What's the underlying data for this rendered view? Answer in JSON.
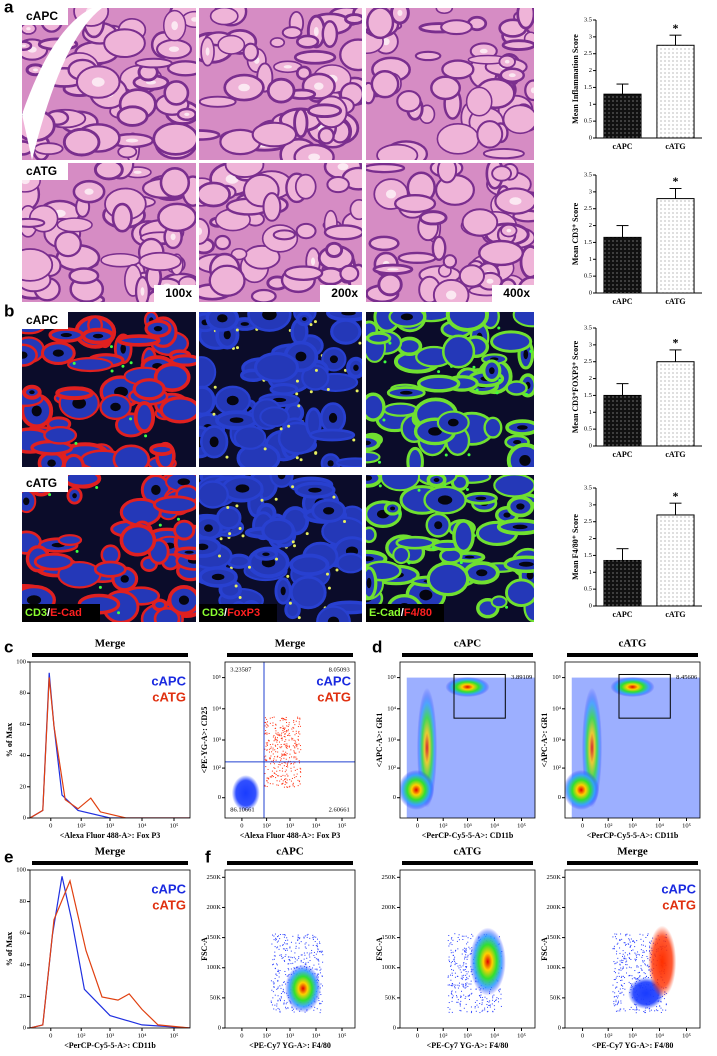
{
  "figure": {
    "letters": [
      "a",
      "b",
      "c",
      "d",
      "e",
      "f"
    ],
    "a": {
      "rows": [
        "cAPC",
        "cATG"
      ],
      "magnifications": [
        "100x",
        "200x",
        "400x"
      ]
    },
    "b": {
      "rows": [
        "cAPC",
        "cATG"
      ],
      "stains": [
        [
          "CD3",
          "/",
          "E-Cad"
        ],
        [
          "CD3",
          "/",
          "FoxP3"
        ],
        [
          "E-Cad",
          "/",
          "F4/80"
        ]
      ]
    },
    "flow": [
      {
        "header": "Merge",
        "kind": "hist",
        "xlabel": "<Alexa Fluor 488-A>: Fox P3",
        "ylabel": "% of Max",
        "legend": [
          "cAPC",
          "cATG"
        ]
      },
      {
        "header": "Merge",
        "kind": "dots",
        "xlabel": "<Alexa Fluor 488-A>: Fox P3",
        "ylabel": "<PE-YG-A>: CD25",
        "legend": [
          "cAPC",
          "cATG"
        ],
        "gates": [
          "3.23587",
          "8.05093",
          "86.10661",
          "2.60661"
        ]
      },
      {
        "header": "cAPC",
        "kind": "dots",
        "xlabel": "<PerCP-Cy5-5-A>: CD11b",
        "ylabel": "<APC-A>: GR1",
        "gates": [
          "3.89109"
        ]
      },
      {
        "header": "cATG",
        "kind": "dots",
        "xlabel": "<PerCP-Cy5-5-A>: CD11b",
        "ylabel": "<APC-A>: GR1",
        "gates": [
          "8.45606"
        ]
      },
      {
        "header": "Merge",
        "kind": "hist",
        "xlabel": "<PerCP-Cy5-5-A>: CD11b",
        "ylabel": "% of Max",
        "legend": [
          "cAPC",
          "cATG"
        ]
      },
      {
        "header": "cAPC",
        "kind": "fsc",
        "xlabel": "<PE-Cy7 YG-A>: F4/80",
        "ylabel": "FSC-A"
      },
      {
        "header": "cATG",
        "kind": "fsc",
        "xlabel": "<PE-Cy7 YG-A>: F4/80",
        "ylabel": "FSC-A"
      },
      {
        "header": "Merge",
        "kind": "fsc",
        "xlabel": "<PE-Cy7 YG-A>: F4/80",
        "ylabel": "FSC-A",
        "legend": [
          "cAPC",
          "cATG"
        ]
      }
    ],
    "log_ticks": [
      {
        "value": 0,
        "label": "0"
      },
      {
        "value": 100,
        "label": "10²"
      },
      {
        "value": 1000,
        "label": "10³"
      },
      {
        "value": 10000,
        "label": "10⁴"
      },
      {
        "value": 100000,
        "label": "10⁵"
      }
    ],
    "pct_ticks": [
      0,
      20,
      40,
      60,
      80,
      100
    ],
    "fsc_ticks": [
      0,
      {
        "value": 50000,
        "label": "50K"
      },
      {
        "value": 100000,
        "label": "100K"
      },
      {
        "value": 150000,
        "label": "150K"
      },
      {
        "value": 200000,
        "label": "200K"
      },
      {
        "value": 250000,
        "label": "250K"
      }
    ]
  },
  "chart_data": [
    {
      "type": "bar",
      "ylabel": "Mean Inflammation Score",
      "categories": [
        "cAPC",
        "cATG"
      ],
      "values": [
        1.3,
        2.75
      ],
      "errors": [
        0.3,
        0.3
      ],
      "colors": [
        "#111111",
        "#ffffff"
      ],
      "ylim": [
        0,
        3.5
      ],
      "yticks": [
        0,
        0.5,
        1,
        1.5,
        2,
        2.5,
        3,
        3.5
      ],
      "annotation": "*"
    },
    {
      "type": "bar",
      "ylabel": "Mean CD3⁺ Score",
      "categories": [
        "cAPC",
        "cATG"
      ],
      "values": [
        1.65,
        2.8
      ],
      "errors": [
        0.35,
        0.3
      ],
      "colors": [
        "#111111",
        "#ffffff"
      ],
      "ylim": [
        0,
        3.5
      ],
      "yticks": [
        0,
        0.5,
        1,
        1.5,
        2,
        2.5,
        3,
        3.5
      ],
      "annotation": "*"
    },
    {
      "type": "bar",
      "ylabel": "Mean CD3⁺FOXP3⁺ Score",
      "categories": [
        "cAPC",
        "cATG"
      ],
      "values": [
        1.5,
        2.5
      ],
      "errors": [
        0.35,
        0.35
      ],
      "colors": [
        "#111111",
        "#ffffff"
      ],
      "ylim": [
        0,
        3.5
      ],
      "yticks": [
        0,
        0.5,
        1,
        1.5,
        2,
        2.5,
        3,
        3.5
      ],
      "annotation": "*"
    },
    {
      "type": "bar",
      "ylabel": "Mean F4/80⁺ Score",
      "categories": [
        "cAPC",
        "cATG"
      ],
      "values": [
        1.35,
        2.7
      ],
      "errors": [
        0.35,
        0.35
      ],
      "colors": [
        "#111111",
        "#ffffff"
      ],
      "ylim": [
        0,
        3.5
      ],
      "yticks": [
        0,
        0.5,
        1,
        1.5,
        2,
        2.5,
        3,
        3.5
      ],
      "annotation": "*"
    }
  ]
}
